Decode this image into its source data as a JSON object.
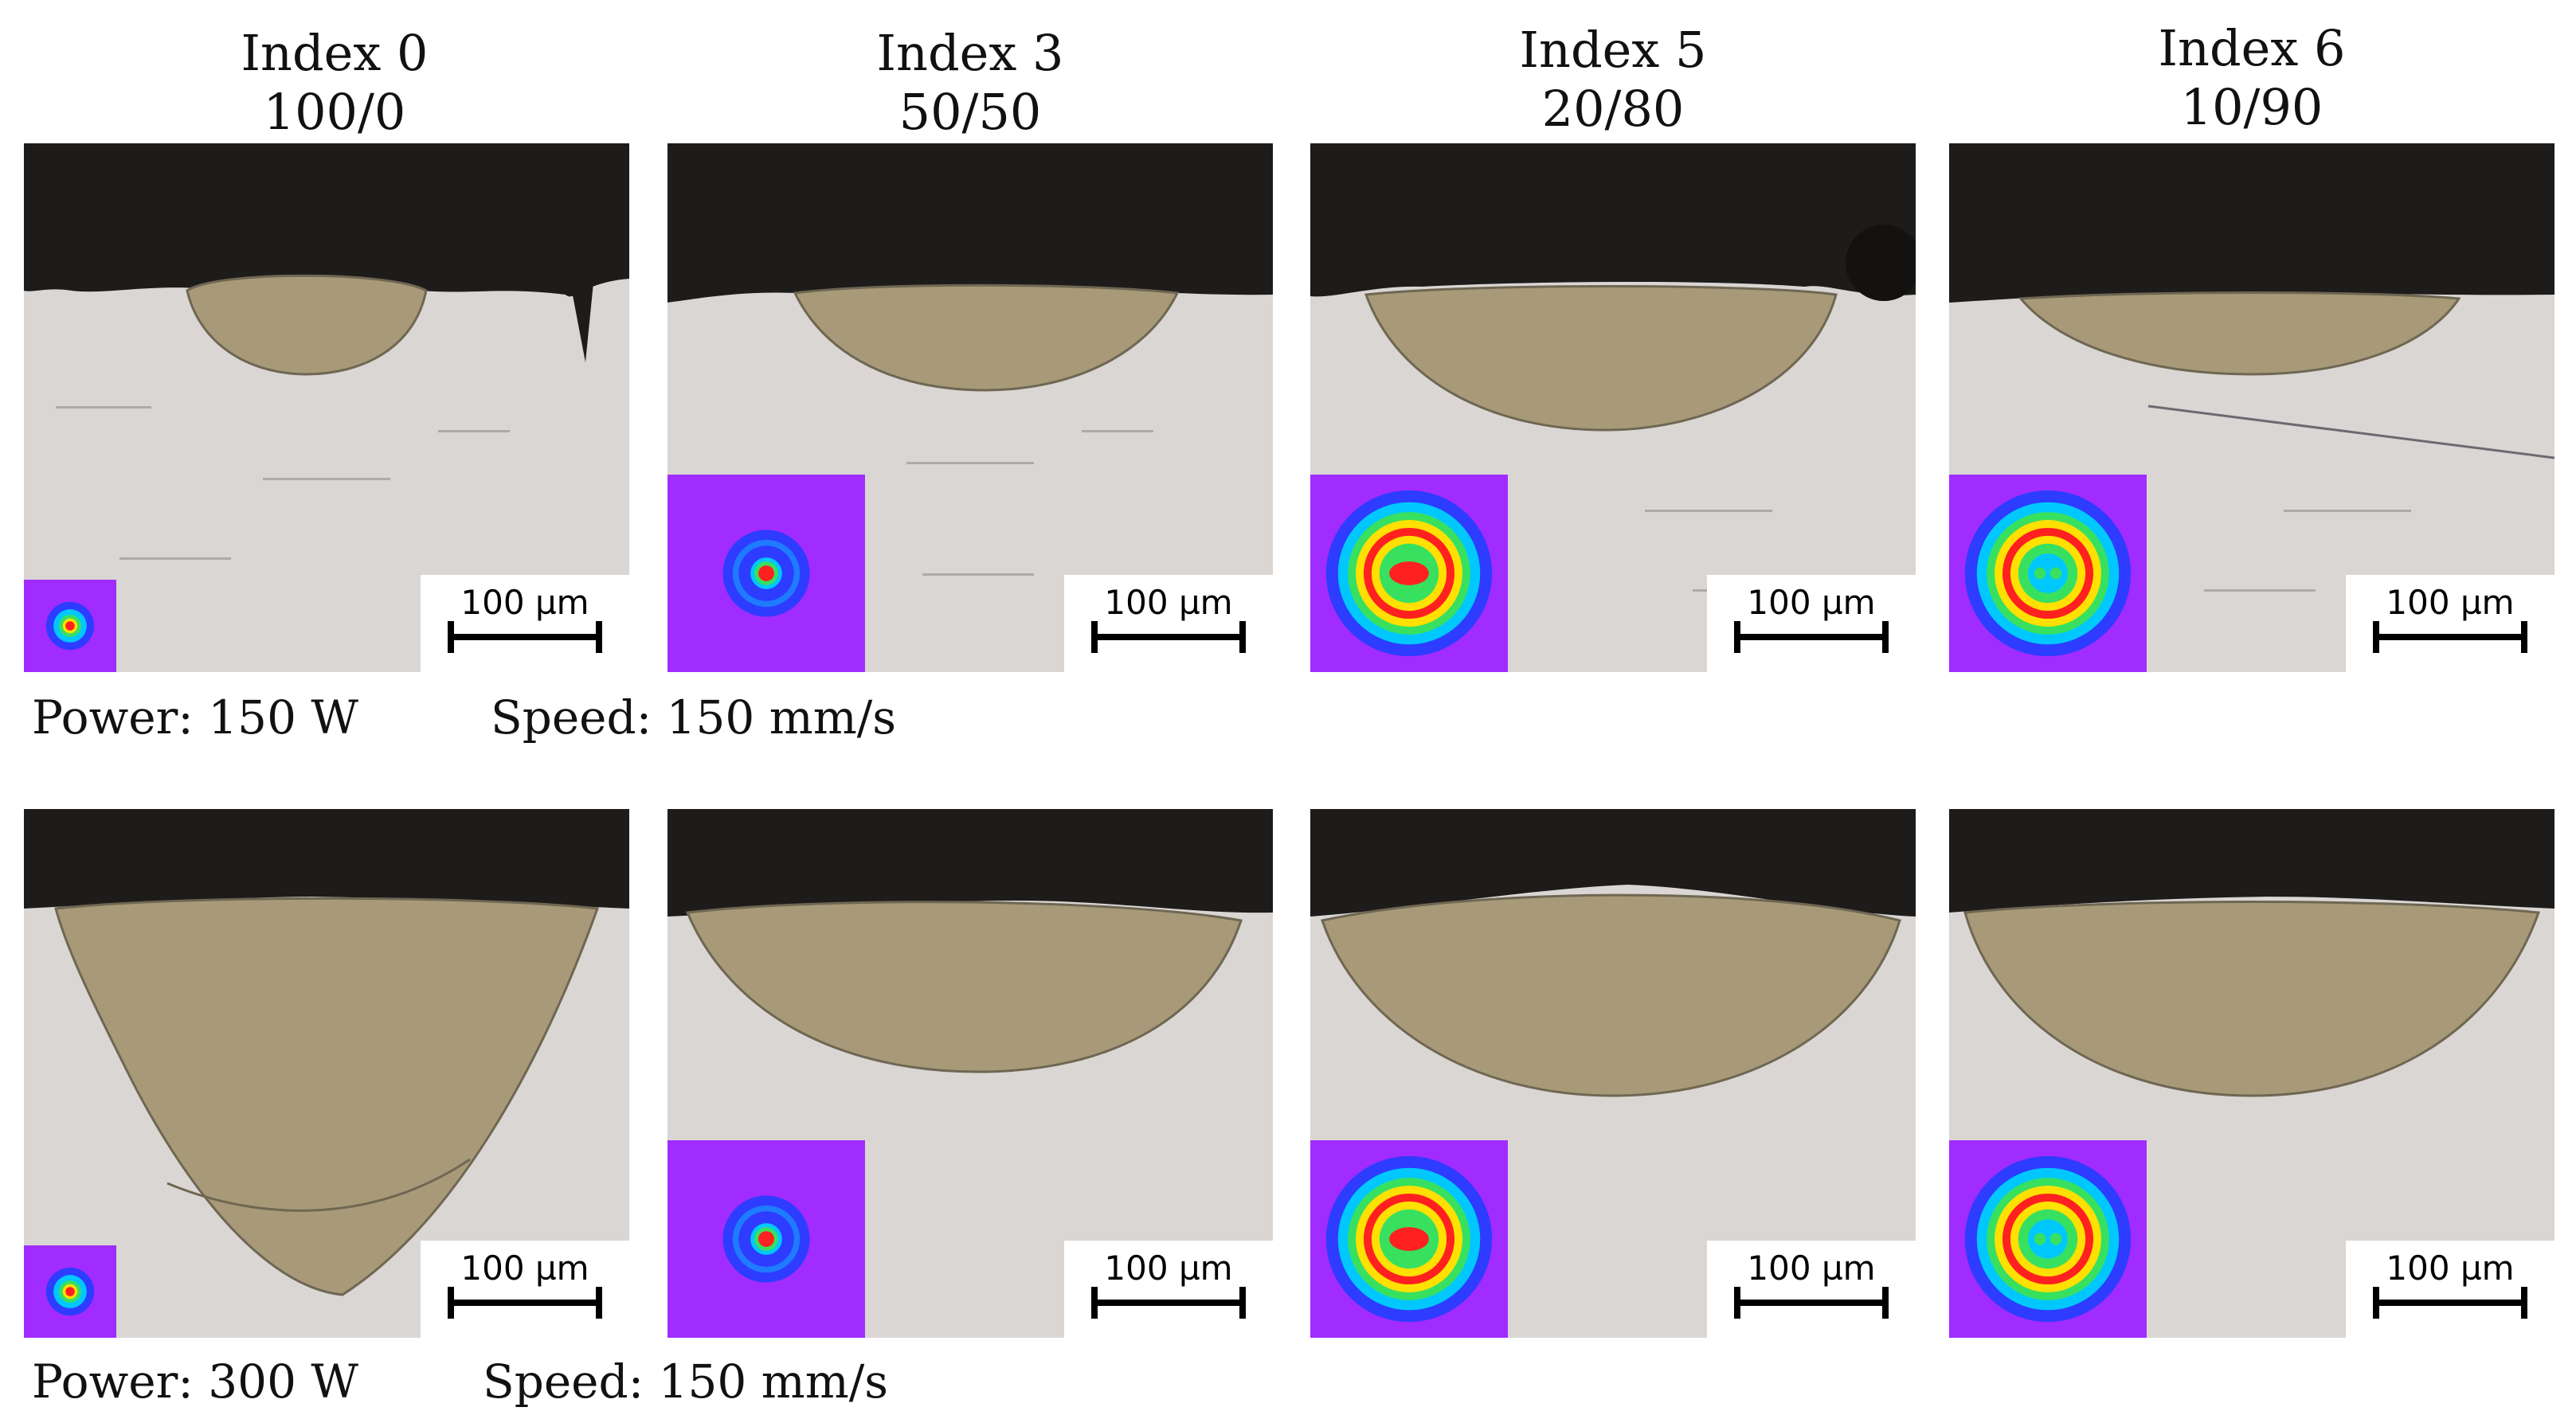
{
  "columns": [
    {
      "index": "Index 0",
      "ratio": "100/0"
    },
    {
      "index": "Index 3",
      "ratio": "50/50"
    },
    {
      "index": "Index 5",
      "ratio": "20/80"
    },
    {
      "index": "Index 6",
      "ratio": "10/90"
    }
  ],
  "scale_bar": "100 µm",
  "rows": [
    {
      "power": "Power: 150 W",
      "speed": "Speed: 150 mm/s"
    },
    {
      "power": "Power: 300 W",
      "speed": "Speed: 150 mm/s"
    }
  ],
  "colors": {
    "resin": "#1e1c1a",
    "substrate": "#d9d6d3",
    "melt_pool": "#a89a78",
    "inset_bg": "#a12cff"
  },
  "beam_profiles": [
    "gaussian-core",
    "core-ring",
    "ring-dominant",
    "ring-dominant"
  ]
}
